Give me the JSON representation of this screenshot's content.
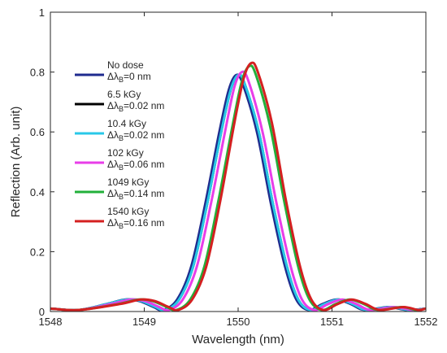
{
  "chart_data": {
    "type": "line",
    "xlabel": "Wavelength (nm)",
    "ylabel": "Reflection (Arb. unit)",
    "xlim": [
      1548,
      1552
    ],
    "ylim": [
      0,
      1
    ],
    "x_ticks": [
      "1548",
      "1549",
      "1550",
      "1551",
      "1552"
    ],
    "y_ticks": [
      "0",
      "0.2",
      "0.4",
      "0.6",
      "0.8",
      "1"
    ],
    "grid": false,
    "legend_position": "left",
    "series": [
      {
        "name": "No dose",
        "shift_label": "=0 nm",
        "color": "#1f2b8f",
        "peak_x": 1549.98,
        "peak_y": 0.79,
        "points": [
          [
            1548.0,
            0.01
          ],
          [
            1548.3,
            0.005
          ],
          [
            1548.6,
            0.025
          ],
          [
            1548.8,
            0.04
          ],
          [
            1548.95,
            0.035
          ],
          [
            1549.1,
            0.015
          ],
          [
            1549.2,
            0.005
          ],
          [
            1549.35,
            0.04
          ],
          [
            1549.5,
            0.15
          ],
          [
            1549.65,
            0.36
          ],
          [
            1549.8,
            0.6
          ],
          [
            1549.9,
            0.74
          ],
          [
            1549.98,
            0.79
          ],
          [
            1550.05,
            0.76
          ],
          [
            1550.2,
            0.6
          ],
          [
            1550.35,
            0.36
          ],
          [
            1550.5,
            0.15
          ],
          [
            1550.62,
            0.04
          ],
          [
            1550.75,
            0.005
          ],
          [
            1550.9,
            0.025
          ],
          [
            1551.05,
            0.04
          ],
          [
            1551.2,
            0.025
          ],
          [
            1551.35,
            0.005
          ],
          [
            1551.6,
            0.015
          ],
          [
            1551.8,
            0.005
          ],
          [
            1552.0,
            0.01
          ]
        ]
      },
      {
        "name": "6.5 kGy",
        "shift_label": "=0.02 nm",
        "color": "#000000",
        "peak_x": 1550.0,
        "peak_y": 0.79,
        "points": [
          [
            1548.0,
            0.01
          ],
          [
            1548.3,
            0.005
          ],
          [
            1548.6,
            0.025
          ],
          [
            1548.82,
            0.04
          ],
          [
            1548.97,
            0.035
          ],
          [
            1549.12,
            0.015
          ],
          [
            1549.22,
            0.005
          ],
          [
            1549.37,
            0.04
          ],
          [
            1549.52,
            0.15
          ],
          [
            1549.67,
            0.36
          ],
          [
            1549.82,
            0.6
          ],
          [
            1549.92,
            0.74
          ],
          [
            1550.0,
            0.79
          ],
          [
            1550.07,
            0.76
          ],
          [
            1550.22,
            0.6
          ],
          [
            1550.37,
            0.36
          ],
          [
            1550.52,
            0.15
          ],
          [
            1550.64,
            0.04
          ],
          [
            1550.77,
            0.005
          ],
          [
            1550.92,
            0.025
          ],
          [
            1551.07,
            0.04
          ],
          [
            1551.22,
            0.025
          ],
          [
            1551.37,
            0.005
          ],
          [
            1551.62,
            0.015
          ],
          [
            1551.82,
            0.005
          ],
          [
            1552.0,
            0.01
          ]
        ]
      },
      {
        "name": "10.4 kGy",
        "shift_label": "=0.02 nm",
        "color": "#29c8e8",
        "peak_x": 1550.0,
        "peak_y": 0.79,
        "points": [
          [
            1548.0,
            0.01
          ],
          [
            1548.3,
            0.005
          ],
          [
            1548.6,
            0.025
          ],
          [
            1548.82,
            0.04
          ],
          [
            1548.97,
            0.035
          ],
          [
            1549.12,
            0.015
          ],
          [
            1549.22,
            0.005
          ],
          [
            1549.37,
            0.04
          ],
          [
            1549.52,
            0.15
          ],
          [
            1549.67,
            0.36
          ],
          [
            1549.82,
            0.6
          ],
          [
            1549.92,
            0.74
          ],
          [
            1550.0,
            0.79
          ],
          [
            1550.07,
            0.76
          ],
          [
            1550.22,
            0.6
          ],
          [
            1550.37,
            0.36
          ],
          [
            1550.52,
            0.15
          ],
          [
            1550.64,
            0.04
          ],
          [
            1550.77,
            0.005
          ],
          [
            1550.92,
            0.025
          ],
          [
            1551.07,
            0.04
          ],
          [
            1551.22,
            0.025
          ],
          [
            1551.37,
            0.005
          ],
          [
            1551.62,
            0.015
          ],
          [
            1551.82,
            0.005
          ],
          [
            1552.0,
            0.01
          ]
        ]
      },
      {
        "name": "102 kGy",
        "shift_label": "=0.06 nm",
        "color": "#e83ee8",
        "peak_x": 1550.04,
        "peak_y": 0.8,
        "points": [
          [
            1548.0,
            0.01
          ],
          [
            1548.3,
            0.005
          ],
          [
            1548.64,
            0.025
          ],
          [
            1548.86,
            0.04
          ],
          [
            1549.01,
            0.035
          ],
          [
            1549.16,
            0.015
          ],
          [
            1549.26,
            0.005
          ],
          [
            1549.41,
            0.04
          ],
          [
            1549.56,
            0.15
          ],
          [
            1549.71,
            0.36
          ],
          [
            1549.86,
            0.6
          ],
          [
            1549.96,
            0.75
          ],
          [
            1550.04,
            0.8
          ],
          [
            1550.11,
            0.77
          ],
          [
            1550.26,
            0.6
          ],
          [
            1550.41,
            0.36
          ],
          [
            1550.56,
            0.15
          ],
          [
            1550.68,
            0.04
          ],
          [
            1550.81,
            0.005
          ],
          [
            1550.96,
            0.025
          ],
          [
            1551.11,
            0.04
          ],
          [
            1551.26,
            0.025
          ],
          [
            1551.41,
            0.005
          ],
          [
            1551.66,
            0.015
          ],
          [
            1551.86,
            0.005
          ],
          [
            1552.0,
            0.01
          ]
        ]
      },
      {
        "name": "1049 kGy",
        "shift_label": "=0.14 nm",
        "color": "#22b03a",
        "peak_x": 1550.12,
        "peak_y": 0.82,
        "points": [
          [
            1548.0,
            0.01
          ],
          [
            1548.3,
            0.005
          ],
          [
            1548.72,
            0.025
          ],
          [
            1548.94,
            0.04
          ],
          [
            1549.09,
            0.035
          ],
          [
            1549.24,
            0.015
          ],
          [
            1549.34,
            0.005
          ],
          [
            1549.49,
            0.04
          ],
          [
            1549.64,
            0.15
          ],
          [
            1549.79,
            0.37
          ],
          [
            1549.94,
            0.62
          ],
          [
            1550.04,
            0.77
          ],
          [
            1550.12,
            0.82
          ],
          [
            1550.19,
            0.79
          ],
          [
            1550.34,
            0.62
          ],
          [
            1550.49,
            0.37
          ],
          [
            1550.64,
            0.15
          ],
          [
            1550.76,
            0.04
          ],
          [
            1550.89,
            0.005
          ],
          [
            1551.04,
            0.025
          ],
          [
            1551.19,
            0.04
          ],
          [
            1551.34,
            0.025
          ],
          [
            1551.49,
            0.005
          ],
          [
            1551.74,
            0.015
          ],
          [
            1551.9,
            0.005
          ],
          [
            1552.0,
            0.01
          ]
        ]
      },
      {
        "name": "1540 kGy",
        "shift_label": "=0.16 nm",
        "color": "#d42020",
        "peak_x": 1550.14,
        "peak_y": 0.83,
        "points": [
          [
            1548.0,
            0.01
          ],
          [
            1548.3,
            0.005
          ],
          [
            1548.74,
            0.025
          ],
          [
            1548.96,
            0.04
          ],
          [
            1549.11,
            0.035
          ],
          [
            1549.26,
            0.015
          ],
          [
            1549.36,
            0.005
          ],
          [
            1549.51,
            0.04
          ],
          [
            1549.66,
            0.15
          ],
          [
            1549.81,
            0.37
          ],
          [
            1549.96,
            0.63
          ],
          [
            1550.06,
            0.78
          ],
          [
            1550.14,
            0.83
          ],
          [
            1550.21,
            0.8
          ],
          [
            1550.36,
            0.63
          ],
          [
            1550.51,
            0.37
          ],
          [
            1550.66,
            0.15
          ],
          [
            1550.78,
            0.04
          ],
          [
            1550.91,
            0.005
          ],
          [
            1551.06,
            0.025
          ],
          [
            1551.21,
            0.04
          ],
          [
            1551.36,
            0.025
          ],
          [
            1551.51,
            0.005
          ],
          [
            1551.76,
            0.015
          ],
          [
            1551.92,
            0.005
          ],
          [
            1552.0,
            0.01
          ]
        ]
      }
    ]
  }
}
